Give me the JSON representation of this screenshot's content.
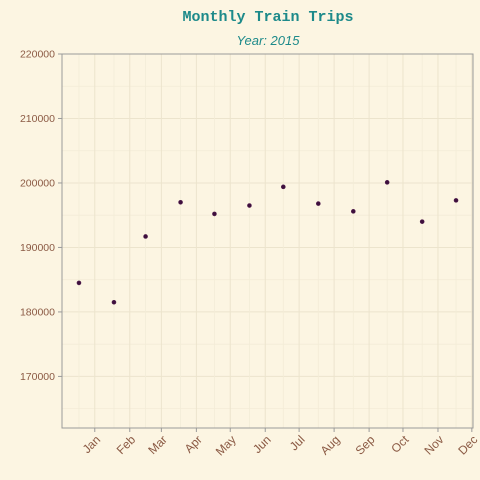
{
  "chart_data": {
    "type": "scatter",
    "title": "Monthly Train Trips",
    "subtitle": "Year: 2015",
    "xlabel": "",
    "ylabel": "",
    "x_tick_labels": [
      "Jan",
      "Feb",
      "Mar",
      "Apr",
      "May",
      "Jun",
      "Jul",
      "Aug",
      "Sep",
      "Oct",
      "Nov",
      "Dec"
    ],
    "y_tick_labels": [
      "170000",
      "180000",
      "190000",
      "200000",
      "210000",
      "220000"
    ],
    "y_ticks": [
      170000,
      180000,
      190000,
      200000,
      210000,
      220000
    ],
    "ylim": [
      162000,
      220000
    ],
    "x_dates": [
      "2015-01-01",
      "2015-12-01"
    ],
    "grid": true,
    "legend": "none",
    "points": [
      {
        "date": "2015-01-01",
        "y": 184500
      },
      {
        "date": "2015-02-01",
        "y": 181500
      },
      {
        "date": "2015-03-01",
        "y": 191700
      },
      {
        "date": "2015-04-01",
        "y": 197000
      },
      {
        "date": "2015-05-01",
        "y": 195200
      },
      {
        "date": "2015-06-01",
        "y": 196500
      },
      {
        "date": "2015-07-01",
        "y": 199400
      },
      {
        "date": "2015-08-01",
        "y": 196800
      },
      {
        "date": "2015-09-01",
        "y": 195600
      },
      {
        "date": "2015-10-01",
        "y": 200100
      },
      {
        "date": "2015-11-01",
        "y": 194000
      },
      {
        "date": "2015-12-01",
        "y": 197300
      }
    ],
    "colors": {
      "background": "#fcf5e2",
      "point": "#3d0f3d",
      "title": "#1d8a8a",
      "tick_text": "#8b5a44"
    }
  }
}
